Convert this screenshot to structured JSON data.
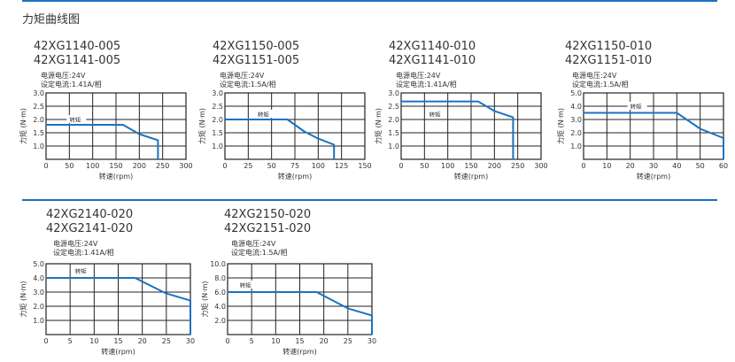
{
  "page": {
    "title": "力矩曲线图",
    "accent_color": "#1a73c1"
  },
  "panels": [
    {
      "model_line1": "42XG1140-005",
      "model_line2": "42XG1141-005",
      "voltage": "电源电压:24V",
      "current": "设定电流:1.41A/相"
    },
    {
      "model_line1": "42XG1150-005",
      "model_line2": "42XG1151-005",
      "voltage": "电源电压:24V",
      "current": "设定电流:1.5A/相"
    },
    {
      "model_line1": "42XG1140-010",
      "model_line2": "42XG1141-010",
      "voltage": "电源电压:24V",
      "current": "设定电流:1.41A/相"
    },
    {
      "model_line1": "42XG1150-010",
      "model_line2": "42XG1151-010",
      "voltage": "电源电压:24V",
      "current": "设定电流:1.5A/相"
    },
    {
      "model_line1": "42XG2140-020",
      "model_line2": "42XG2141-020",
      "voltage": "电源电压:24V",
      "current": "设定电流:1.41A/相"
    },
    {
      "model_line1": "42XG2150-020",
      "model_line2": "42XG2151-020",
      "voltage": "电源电压:24V",
      "current": "设定电流:1.5A/相"
    }
  ],
  "chart_data": [
    {
      "type": "line",
      "title": "42XG1140-005 / 42XG1141-005",
      "xlabel": "转速(rpm)",
      "ylabel": "力矩 (N·m)",
      "xlim": [
        0,
        300
      ],
      "ylim": [
        0.5,
        3.0
      ],
      "xticks": [
        0,
        50,
        100,
        150,
        200,
        250,
        300
      ],
      "yticks": [
        1.0,
        1.5,
        2.0,
        2.5,
        3.0
      ],
      "ytick_labels": [
        "1.0",
        "1.5",
        "2.0",
        "2.5",
        "3.0"
      ],
      "grid": true,
      "legend": "转矩",
      "legend_pos": [
        50,
        2.0
      ],
      "series": [
        {
          "name": "转矩",
          "color": "#1a73c1",
          "x": [
            0,
            165,
            200,
            240,
            240
          ],
          "y": [
            1.8,
            1.8,
            1.45,
            1.22,
            0.5
          ]
        }
      ]
    },
    {
      "type": "line",
      "title": "42XG1150-005 / 42XG1151-005",
      "xlabel": "转速(rpm)",
      "ylabel": "力矩 (N·m)",
      "xlim": [
        0,
        150
      ],
      "ylim": [
        0.5,
        3.0
      ],
      "xticks": [
        0,
        25,
        50,
        75,
        100,
        125,
        150
      ],
      "yticks": [
        1.0,
        1.5,
        2.0,
        2.5,
        3.0
      ],
      "ytick_labels": [
        "1.0",
        "1.5",
        "2.0",
        "2.5",
        "3.0"
      ],
      "grid": true,
      "legend": "转矩",
      "legend_pos": [
        35,
        2.2
      ],
      "series": [
        {
          "name": "转矩",
          "color": "#1a73c1",
          "x": [
            0,
            67,
            85,
            100,
            117,
            117
          ],
          "y": [
            2.0,
            2.0,
            1.55,
            1.28,
            1.05,
            0.5
          ]
        }
      ]
    },
    {
      "type": "line",
      "title": "42XG1140-010 / 42XG1141-010",
      "xlabel": "转速(rpm)",
      "ylabel": "力矩 (N·m)",
      "xlim": [
        0,
        300
      ],
      "ylim": [
        0.5,
        3.0
      ],
      "xticks": [
        0,
        50,
        100,
        150,
        200,
        250,
        300
      ],
      "yticks": [
        1.0,
        1.5,
        2.0,
        2.5,
        3.0
      ],
      "ytick_labels": [
        "1.0",
        "1.5",
        "2.0",
        "2.5",
        "3.0"
      ],
      "grid": true,
      "legend": "转矩",
      "legend_pos": [
        60,
        2.2
      ],
      "series": [
        {
          "name": "转矩",
          "color": "#1a73c1",
          "x": [
            0,
            165,
            200,
            240,
            240
          ],
          "y": [
            2.68,
            2.68,
            2.32,
            2.08,
            0.5
          ]
        }
      ]
    },
    {
      "type": "line",
      "title": "42XG1150-010 / 42XG1151-010",
      "xlabel": "转速(rpm)",
      "ylabel": "力矩 (N·m)",
      "xlim": [
        0,
        60
      ],
      "ylim": [
        0,
        5.0
      ],
      "xticks": [
        0,
        10,
        20,
        30,
        40,
        50,
        60
      ],
      "yticks": [
        1.0,
        2.0,
        3.0,
        4.0,
        5.0
      ],
      "ytick_labels": [
        "1.0",
        "2.0",
        "3.0",
        "4.0",
        "5.0"
      ],
      "grid": true,
      "legend": "转矩",
      "legend_pos": [
        20,
        4.0
      ],
      "series": [
        {
          "name": "转矩",
          "color": "#1a73c1",
          "x": [
            0,
            40,
            50,
            60,
            60
          ],
          "y": [
            3.5,
            3.5,
            2.3,
            1.6,
            0
          ]
        }
      ]
    },
    {
      "type": "line",
      "title": "42XG2140-020 / 42XG2141-020",
      "xlabel": "转速(rpm)",
      "ylabel": "力矩 (N·m)",
      "xlim": [
        0,
        30
      ],
      "ylim": [
        0,
        5.0
      ],
      "xticks": [
        0,
        5,
        10,
        15,
        20,
        25,
        30
      ],
      "yticks": [
        1.0,
        2.0,
        3.0,
        4.0,
        5.0
      ],
      "ytick_labels": [
        "1.0",
        "2.0",
        "3.0",
        "4.0",
        "5.0"
      ],
      "grid": true,
      "legend": "转矩",
      "legend_pos": [
        6,
        4.5
      ],
      "series": [
        {
          "name": "转矩",
          "color": "#1a73c1",
          "x": [
            0,
            18.5,
            25,
            30,
            30
          ],
          "y": [
            4.0,
            4.0,
            2.9,
            2.4,
            0
          ]
        }
      ]
    },
    {
      "type": "line",
      "title": "42XG2150-020 / 42XG2151-020",
      "xlabel": "转速(rpm)",
      "ylabel": "力矩 (N·m)",
      "xlim": [
        0,
        30
      ],
      "ylim": [
        0,
        10.0
      ],
      "xticks": [
        0,
        5,
        10,
        15,
        20,
        25,
        30
      ],
      "yticks": [
        2.0,
        4.0,
        6.0,
        8.0,
        10.0
      ],
      "ytick_labels": [
        "2.0",
        "4.0",
        "6.0",
        "8.0",
        "10.0"
      ],
      "grid": true,
      "legend": "转矩",
      "legend_pos": [
        2.5,
        7.0
      ],
      "series": [
        {
          "name": "转矩",
          "color": "#1a73c1",
          "x": [
            0,
            18.5,
            25,
            30,
            30
          ],
          "y": [
            6.0,
            6.0,
            3.7,
            2.7,
            0
          ]
        }
      ]
    }
  ]
}
